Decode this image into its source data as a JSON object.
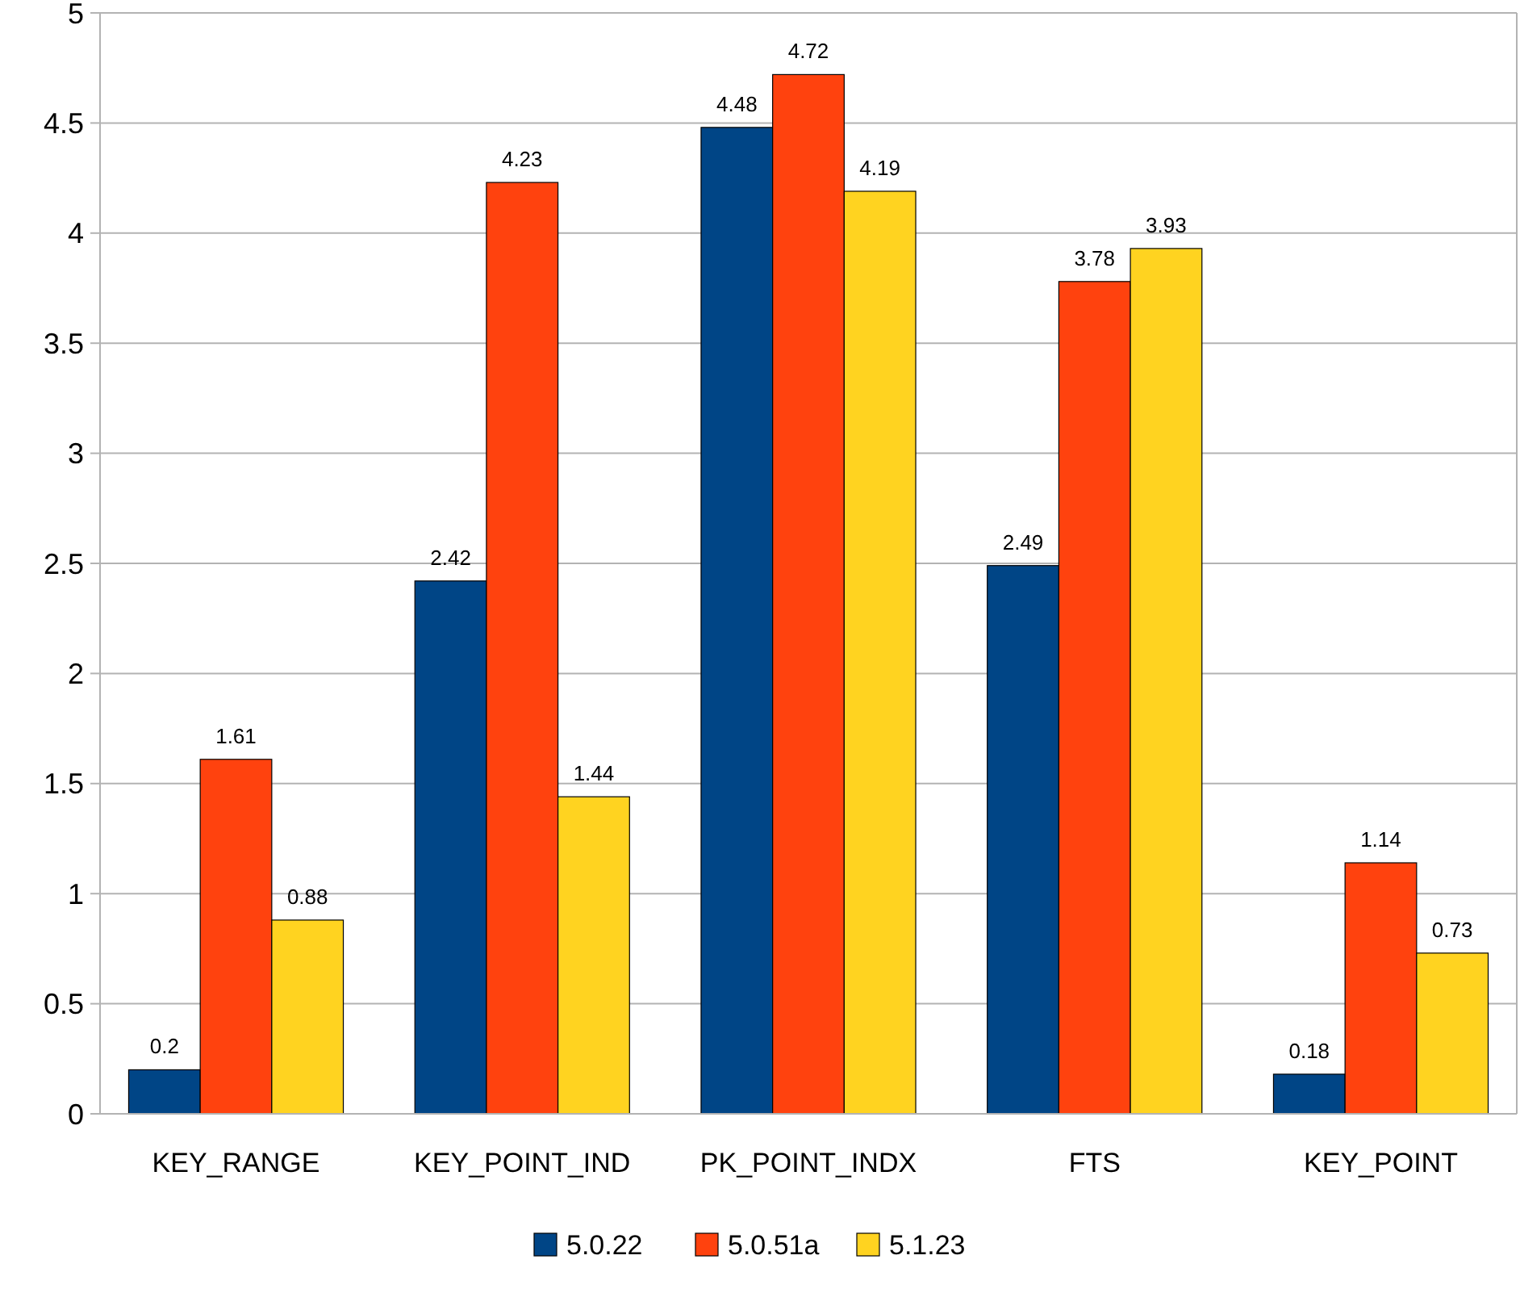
{
  "chart_data": {
    "type": "bar",
    "categories": [
      "KEY_RANGE",
      "KEY_POINT_IND",
      "PK_POINT_INDX",
      "FTS",
      "KEY_POINT"
    ],
    "series": [
      {
        "name": "5.0.22",
        "color": "#004586",
        "values": [
          0.2,
          2.42,
          4.48,
          2.49,
          0.18
        ]
      },
      {
        "name": "5.0.51a",
        "color": "#ff420e",
        "values": [
          1.61,
          4.23,
          4.72,
          3.78,
          1.14
        ]
      },
      {
        "name": "5.1.23",
        "color": "#ffd320",
        "values": [
          0.88,
          1.44,
          4.19,
          3.93,
          0.73
        ]
      }
    ],
    "ylim": [
      0,
      5
    ],
    "yticks": [
      0,
      0.5,
      1,
      1.5,
      2,
      2.5,
      3,
      3.5,
      4,
      4.5,
      5
    ],
    "grid": "y",
    "legend": "bottom",
    "data_labels": true
  }
}
